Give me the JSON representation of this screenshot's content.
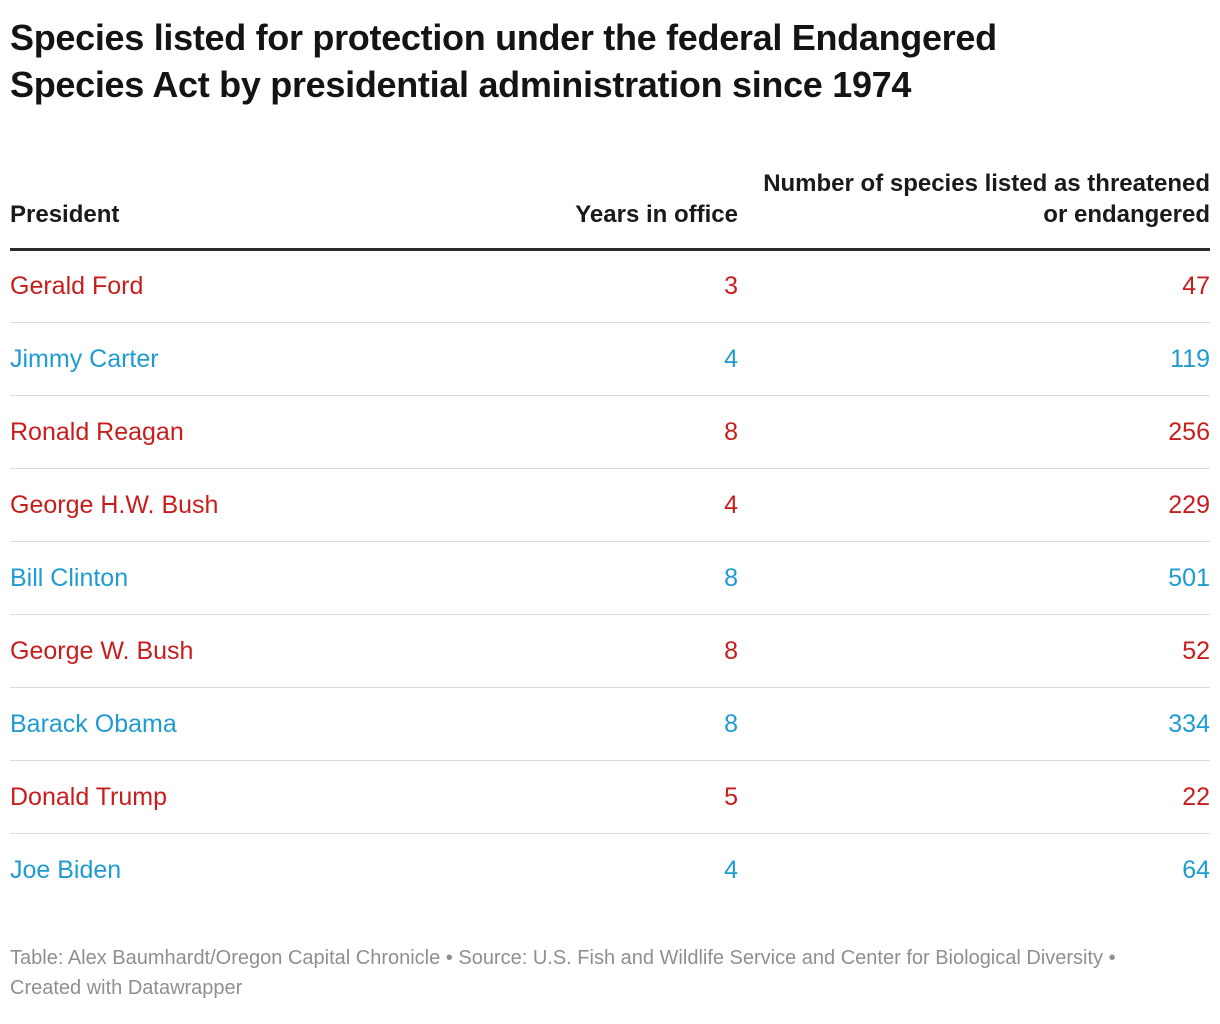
{
  "title": {
    "full": "Species listed for protection under the federal Endangered Species Act by presidential administration since 1974",
    "lines": [
      "Species listed for protection under the federal Endangered",
      "Species Act by presidential administration since 1974"
    ]
  },
  "chart_data": {
    "type": "table",
    "title": "Species listed for protection under the federal Endangered Species Act by presidential administration since 1974",
    "columns": [
      "President",
      "Years in office",
      "Number of species listed as threatened or endangered"
    ],
    "rows": [
      [
        "Gerald Ford",
        3,
        47
      ],
      [
        "Jimmy Carter",
        4,
        119
      ],
      [
        "Ronald Reagan",
        8,
        256
      ],
      [
        "George H.W. Bush",
        4,
        229
      ],
      [
        "Bill Clinton",
        8,
        501
      ],
      [
        "George W. Bush",
        8,
        52
      ],
      [
        "Barack Obama",
        8,
        334
      ],
      [
        "Donald Trump",
        5,
        22
      ],
      [
        "Joe Biden",
        4,
        64
      ]
    ],
    "layout_hints": {
      "column_alignment": [
        "left",
        "right",
        "right"
      ],
      "row_text_colored_by_party": true
    }
  },
  "parties": {
    "by_row": [
      "republican",
      "democrat",
      "republican",
      "republican",
      "democrat",
      "republican",
      "democrat",
      "republican",
      "democrat"
    ],
    "colors": {
      "republican": "#c71e1d",
      "democrat": "#1e9cd2"
    }
  },
  "footer": {
    "text": "Table: Alex Baumhardt/Oregon Capital Chronicle • Source: U.S. Fish and Wildlife Service and Center for Biological Diversity • Created with Datawrapper"
  }
}
